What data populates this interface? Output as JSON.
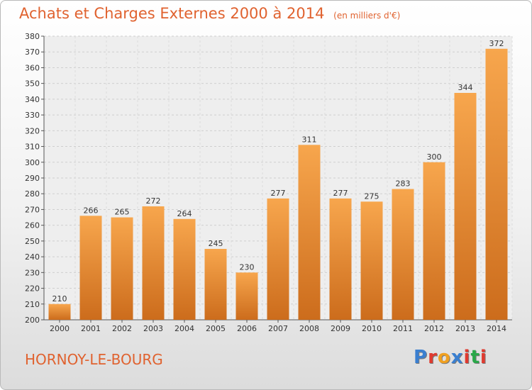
{
  "header": {
    "title": "Achats et Charges Externes 2000 à 2014",
    "unit": "(en milliers d'€)"
  },
  "footer": {
    "place": "HORNOY-LE-BOURG",
    "logo": "Proxiti",
    "logo_colors": [
      "#3a7fd0",
      "#e03a2f",
      "#f0a020",
      "#3a7fd0",
      "#e03a2f",
      "#2aa84a",
      "#e03a2f"
    ]
  },
  "colors": {
    "accent": "#e0622f",
    "bar_top": "#f7a64d",
    "bar_bottom": "#cc6c1c"
  },
  "chart_data": {
    "type": "bar",
    "categories": [
      "2000",
      "2001",
      "2002",
      "2003",
      "2004",
      "2005",
      "2006",
      "2007",
      "2008",
      "2009",
      "2010",
      "2011",
      "2012",
      "2013",
      "2014"
    ],
    "values": [
      210,
      266,
      265,
      272,
      264,
      245,
      230,
      277,
      311,
      277,
      275,
      283,
      300,
      344,
      372
    ],
    "title": "Achats et Charges Externes 2000 à 2014",
    "ylim": [
      200,
      380
    ],
    "ytick_step": 10,
    "grid": true,
    "data_labels": true
  }
}
